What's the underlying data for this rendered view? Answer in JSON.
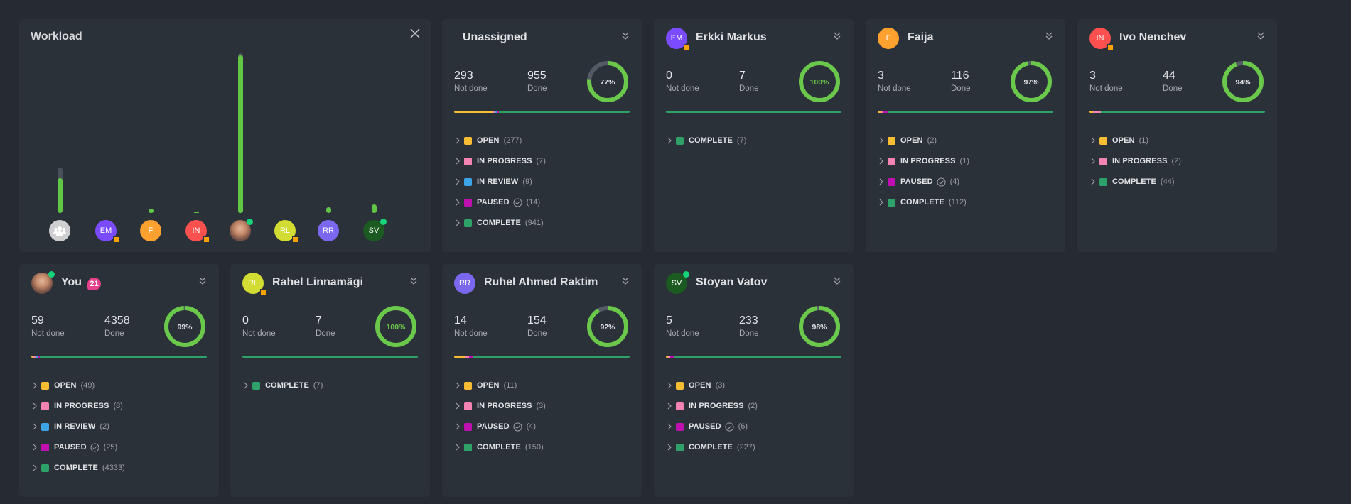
{
  "workload": {
    "title": "Workload",
    "chart_data": {
      "type": "bar",
      "categories": [
        "Unassigned",
        "EM",
        "F",
        "IN",
        "You",
        "RL",
        "RR",
        "SV"
      ],
      "series": [
        {
          "values": [
            955,
            7,
            116,
            44,
            4358,
            7,
            154,
            233
          ]
        },
        {
          "values": [
            293,
            0,
            3,
            3,
            59,
            0,
            14,
            5
          ]
        }
      ],
      "stacked": true,
      "colors": [
        "#62c645",
        "#4a5059"
      ]
    }
  },
  "status_colors": {
    "OPEN": "#f9bd33",
    "IN PROGRESS": "#f283b3",
    "IN REVIEW": "#3da5e6",
    "PAUSED": "#c010b1",
    "COMPLETE": "#2ea268"
  },
  "labels": {
    "not_done": "Not done",
    "done": "Done"
  },
  "members": [
    {
      "name": "Unassigned",
      "initials": "",
      "avatar_color": "#cfcfd2",
      "icon": "group-icon",
      "not_done": 293,
      "done": 955,
      "percent": "77%",
      "percent_value": 77,
      "statuses": [
        {
          "label": "OPEN",
          "count": "(277)",
          "n": 277
        },
        {
          "label": "IN PROGRESS",
          "count": "(7)",
          "n": 7
        },
        {
          "label": "IN REVIEW",
          "count": "(9)",
          "n": 9
        },
        {
          "label": "PAUSED",
          "count": "(14)",
          "n": 14
        },
        {
          "label": "COMPLETE",
          "count": "(941)",
          "n": 941
        }
      ]
    },
    {
      "name": "Erkki Markus",
      "initials": "EM",
      "avatar_color": "#7b4cff",
      "away": true,
      "not_done": 0,
      "done": 7,
      "percent": "100%",
      "percent_value": 100,
      "statuses": [
        {
          "label": "COMPLETE",
          "count": "(7)",
          "n": 7
        }
      ]
    },
    {
      "name": "Faija",
      "initials": "F",
      "avatar_color": "#ffa12f",
      "not_done": 3,
      "done": 116,
      "percent": "97%",
      "percent_value": 97,
      "statuses": [
        {
          "label": "OPEN",
          "count": "(2)",
          "n": 2
        },
        {
          "label": "IN PROGRESS",
          "count": "(1)",
          "n": 1
        },
        {
          "label": "PAUSED",
          "count": "(4)",
          "n": 4
        },
        {
          "label": "COMPLETE",
          "count": "(112)",
          "n": 112
        }
      ]
    },
    {
      "name": "Ivo Nenchev",
      "initials": "IN",
      "avatar_color": "#ff5050",
      "away": true,
      "not_done": 3,
      "done": 44,
      "percent": "94%",
      "percent_value": 94,
      "statuses": [
        {
          "label": "OPEN",
          "count": "(1)",
          "n": 1
        },
        {
          "label": "IN PROGRESS",
          "count": "(2)",
          "n": 2
        },
        {
          "label": "COMPLETE",
          "count": "(44)",
          "n": 44
        }
      ]
    },
    {
      "name": "You",
      "initials": "",
      "photo": true,
      "online": true,
      "badge": "21",
      "not_done": 59,
      "done": 4358,
      "percent": "99%",
      "percent_value": 99,
      "statuses": [
        {
          "label": "OPEN",
          "count": "(49)",
          "n": 49
        },
        {
          "label": "IN PROGRESS",
          "count": "(8)",
          "n": 8
        },
        {
          "label": "IN REVIEW",
          "count": "(2)",
          "n": 2
        },
        {
          "label": "PAUSED",
          "count": "(25)",
          "n": 25
        },
        {
          "label": "COMPLETE",
          "count": "(4333)",
          "n": 4333
        }
      ]
    },
    {
      "name": "Rahel Linnamägi",
      "initials": "RL",
      "avatar_color": "#d2dc33",
      "away": true,
      "not_done": 0,
      "done": 7,
      "percent": "100%",
      "percent_value": 100,
      "statuses": [
        {
          "label": "COMPLETE",
          "count": "(7)",
          "n": 7
        }
      ]
    },
    {
      "name": "Ruhel Ahmed Raktim",
      "initials": "RR",
      "avatar_color": "#7b68ee",
      "not_done": 14,
      "done": 154,
      "percent": "92%",
      "percent_value": 92,
      "statuses": [
        {
          "label": "OPEN",
          "count": "(11)",
          "n": 11
        },
        {
          "label": "IN PROGRESS",
          "count": "(3)",
          "n": 3
        },
        {
          "label": "PAUSED",
          "count": "(4)",
          "n": 4
        },
        {
          "label": "COMPLETE",
          "count": "(150)",
          "n": 150
        }
      ]
    },
    {
      "name": "Stoyan Vatov",
      "initials": "SV",
      "avatar_color": "#1b5a20",
      "online": true,
      "not_done": 5,
      "done": 233,
      "percent": "98%",
      "percent_value": 98,
      "statuses": [
        {
          "label": "OPEN",
          "count": "(3)",
          "n": 3
        },
        {
          "label": "IN PROGRESS",
          "count": "(2)",
          "n": 2
        },
        {
          "label": "PAUSED",
          "count": "(6)",
          "n": 6
        },
        {
          "label": "COMPLETE",
          "count": "(227)",
          "n": 227
        }
      ]
    }
  ]
}
